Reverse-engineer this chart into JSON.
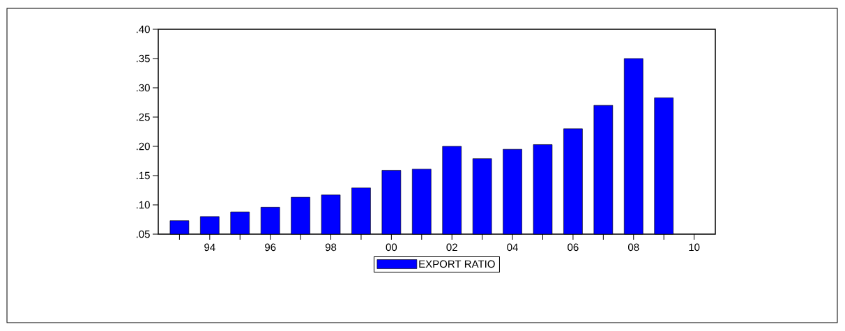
{
  "chart_data": {
    "type": "bar",
    "categories": [
      null,
      "94",
      null,
      "96",
      null,
      "98",
      null,
      "00",
      null,
      "02",
      null,
      "04",
      null,
      "06",
      null,
      "08",
      null,
      "10"
    ],
    "series": [
      {
        "name": "EXPORT RATIO",
        "color": "#0000ff",
        "values": [
          0.073,
          0.08,
          0.088,
          0.096,
          0.113,
          0.117,
          0.129,
          0.159,
          0.161,
          0.2,
          0.179,
          0.195,
          0.203,
          0.23,
          0.27,
          0.35,
          0.283,
          null
        ]
      }
    ],
    "ylim": [
      0.05,
      0.4
    ],
    "yticks": [
      {
        "value": 0.05,
        "label": ".05"
      },
      {
        "value": 0.1,
        "label": ".10"
      },
      {
        "value": 0.15,
        "label": ".15"
      },
      {
        "value": 0.2,
        "label": ".20"
      },
      {
        "value": 0.25,
        "label": ".25"
      },
      {
        "value": 0.3,
        "label": ".30"
      },
      {
        "value": 0.35,
        "label": ".35"
      },
      {
        "value": 0.4,
        "label": ".40"
      }
    ],
    "legend": "bottom"
  }
}
